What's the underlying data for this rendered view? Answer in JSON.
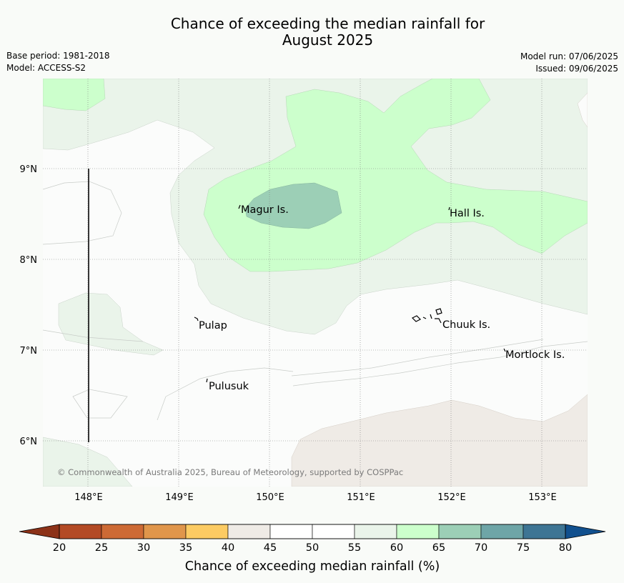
{
  "title_line1": "Chance of exceeding the median rainfall for",
  "title_line2": "August 2025",
  "base_period": "Base period: 1981-2018",
  "model": "Model: ACCESS-S2",
  "model_run": "Model run: 07/06/2025",
  "issued": "Issued: 09/06/2025",
  "copyright": "© Commonwealth of Australia 2025, Bureau of Meteorology, supported by COSPPac",
  "map": {
    "lon_ticks": [
      "148°E",
      "149°E",
      "150°E",
      "151°E",
      "152°E",
      "153°E"
    ],
    "lat_ticks": [
      "9°N",
      "8°N",
      "7°N",
      "6°N"
    ],
    "places": [
      {
        "name": "Magur Is."
      },
      {
        "name": "Hall Is."
      },
      {
        "name": "Pulap"
      },
      {
        "name": "Chuuk Is."
      },
      {
        "name": "Mortlock Is."
      },
      {
        "name": "Pulusuk"
      }
    ]
  },
  "colorbar": {
    "label": "Chance of exceeding median rainfall (%)",
    "ticks": [
      "20",
      "25",
      "30",
      "35",
      "40",
      "45",
      "50",
      "55",
      "60",
      "65",
      "70",
      "75",
      "80"
    ],
    "colors": {
      "below20": "#8c3218",
      "20-25": "#b34a25",
      "25-30": "#cd6a35",
      "30-35": "#e0964b",
      "35-40": "#fccb63",
      "40-45": "#efebe6",
      "45-50": "#ffffff",
      "50-55": "#ffffff",
      "55-60": "#eaf4ea",
      "60-65": "#ccffcc",
      "65-70": "#9ccfb6",
      "70-75": "#6ea5a7",
      "75-80": "#3e7594",
      "above80": "#11508e"
    }
  }
}
